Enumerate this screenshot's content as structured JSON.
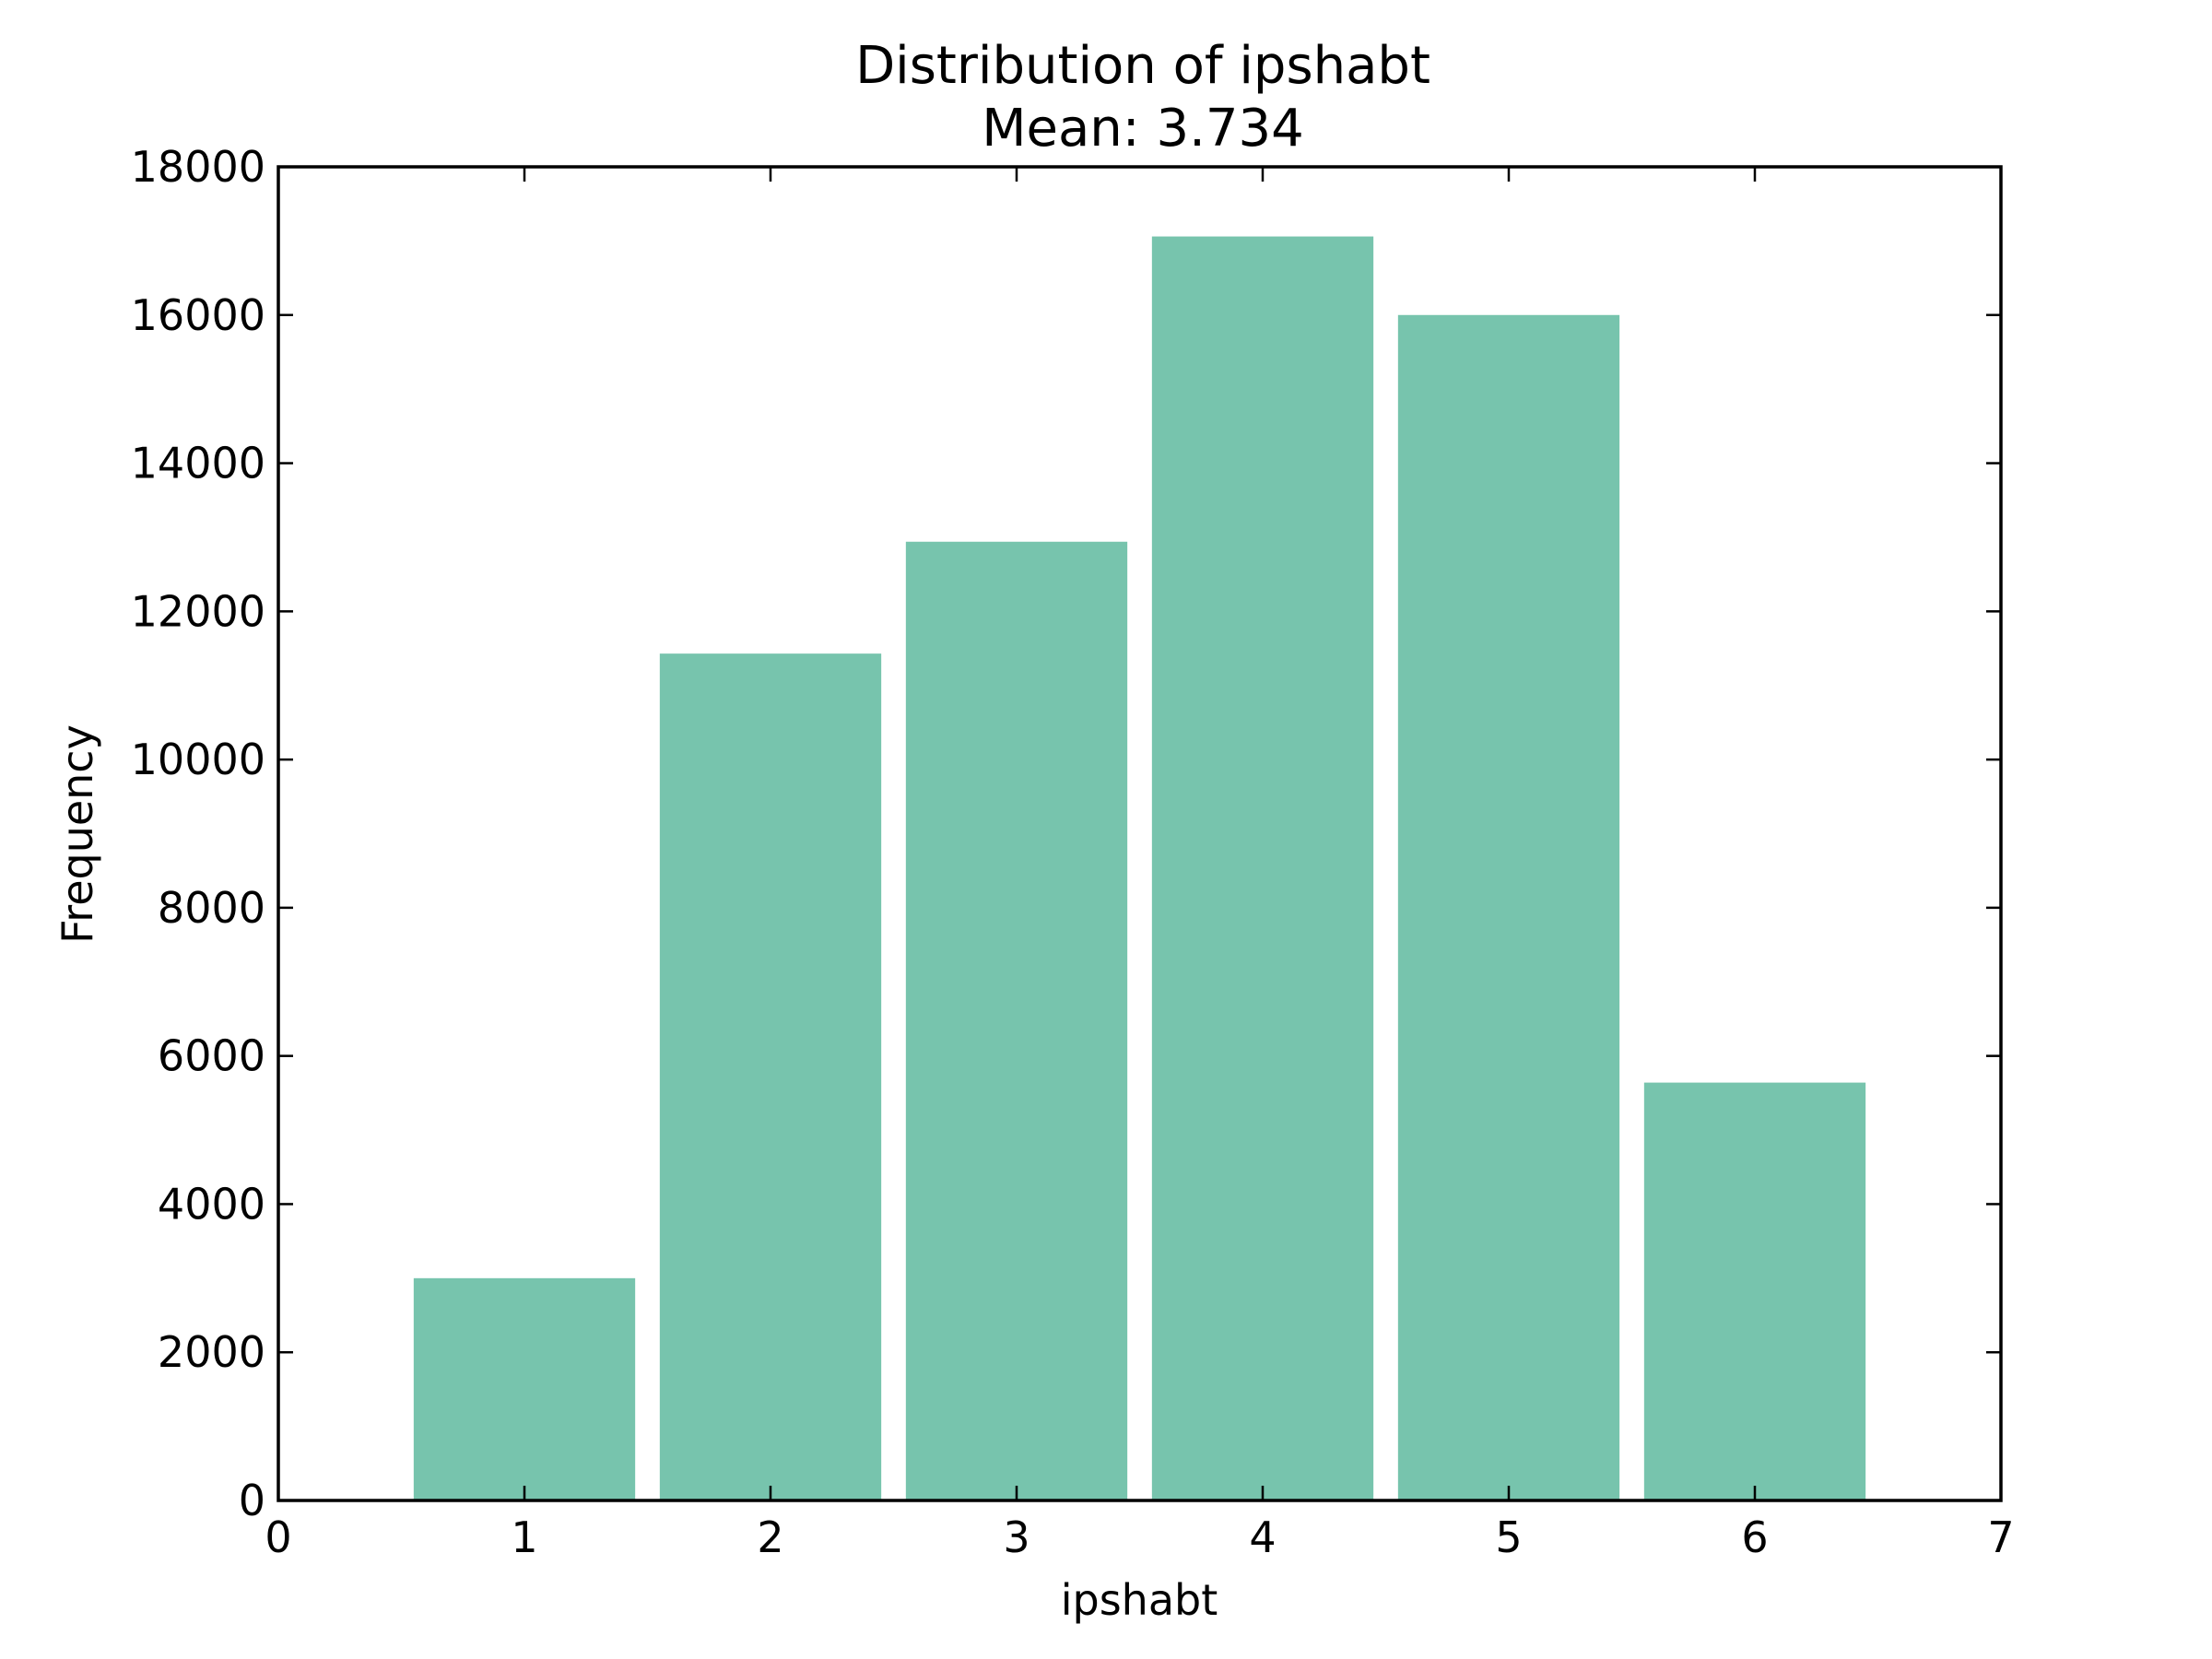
{
  "chart_data": {
    "type": "bar",
    "title": "Distribution of ipshabt",
    "subtitle": "Mean: 3.734",
    "xlabel": "ipshabt",
    "ylabel": "Frequency",
    "categories": [
      1,
      2,
      3,
      4,
      5,
      6
    ],
    "values": [
      3000,
      11430,
      12940,
      17060,
      16000,
      5640
    ],
    "bar_width": 0.9,
    "xlim": [
      0,
      7
    ],
    "ylim": [
      0,
      18000
    ],
    "xticks": [
      "0",
      "1",
      "2",
      "3",
      "4",
      "5",
      "6",
      "7"
    ],
    "yticks": [
      "0",
      "2000",
      "4000",
      "6000",
      "8000",
      "10000",
      "12000",
      "14000",
      "16000",
      "18000"
    ],
    "grid": false,
    "legend": "none",
    "bar_color": "#77c4ad"
  }
}
